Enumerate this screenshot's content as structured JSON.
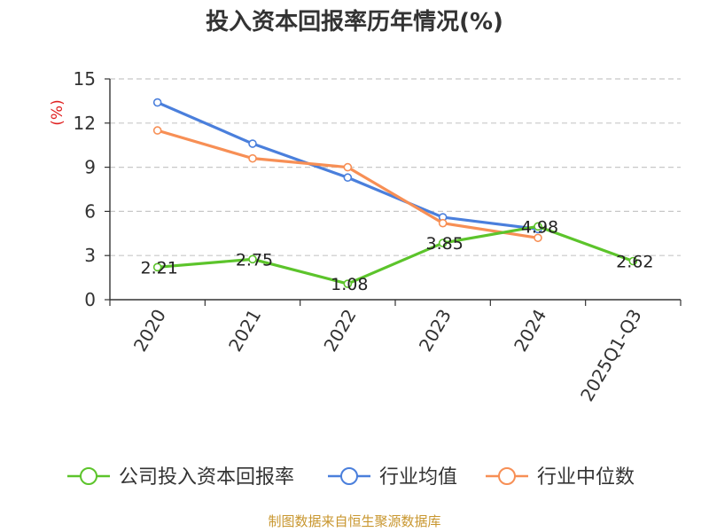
{
  "chart_data": {
    "type": "line",
    "title": "投入资本回报率历年情况(%)",
    "ylabel": "(%)",
    "xlabel": "",
    "ylim": [
      0,
      15
    ],
    "yticks": [
      0,
      3,
      6,
      9,
      12,
      15
    ],
    "grid": true,
    "legend_position": "bottom",
    "categories": [
      "2020",
      "2021",
      "2022",
      "2023",
      "2024",
      "2025Q1-Q3"
    ],
    "series": [
      {
        "name": "公司投入资本回报率",
        "color": "#5cc42b",
        "values": [
          2.21,
          2.75,
          1.08,
          3.85,
          4.98,
          2.62
        ],
        "labels": [
          "2.21",
          "2.75",
          "1.08",
          "3.85",
          "4.98",
          "2.62"
        ]
      },
      {
        "name": "行业均值",
        "color": "#4a7fdc",
        "values": [
          13.4,
          10.6,
          8.3,
          5.6,
          4.8,
          null
        ]
      },
      {
        "name": "行业中位数",
        "color": "#f78f55",
        "values": [
          11.5,
          9.6,
          9.0,
          5.2,
          4.2,
          null
        ]
      }
    ]
  },
  "source": "制图数据来自恒生聚源数据库"
}
